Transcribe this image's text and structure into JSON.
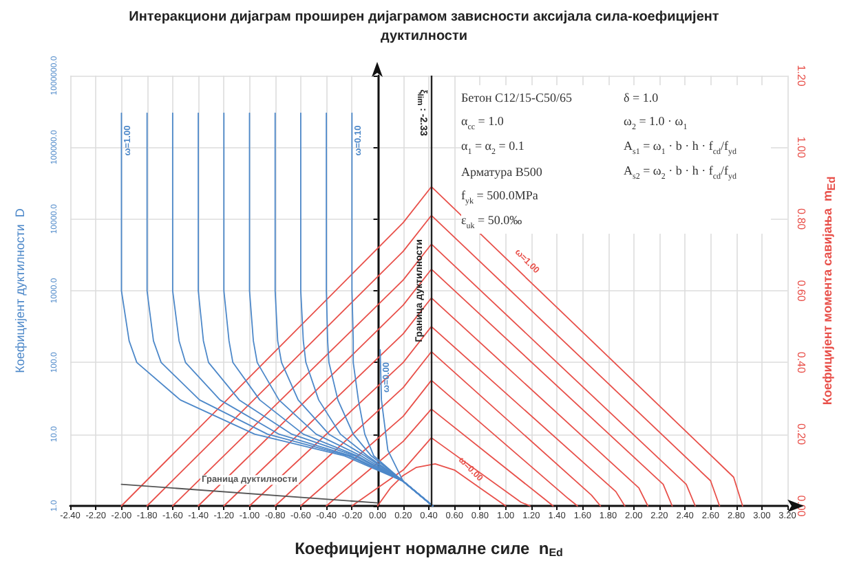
{
  "chart_data": {
    "type": "line",
    "title": "Интеракциони дијаграм проширен дијаграмом зависности аксијала сила-коефицијент дуктилности",
    "xlabel": "Коефицијент нормалне силе  n$_{Ed}$",
    "ylabel": "Коефицијент дуктилности  D",
    "y2label": "Коефицијент момента савијања  m$_{Ed}$",
    "xlim": [
      -2.4,
      3.2
    ],
    "xticks": [
      {
        "value": -2.4,
        "label": "-2.40"
      },
      {
        "value": -2.2,
        "label": "-2.20"
      },
      {
        "value": -2.0,
        "label": "-2.00"
      },
      {
        "value": -1.8,
        "label": "-1.80"
      },
      {
        "value": -1.6,
        "label": "-1.60"
      },
      {
        "value": -1.4,
        "label": "-1.40"
      },
      {
        "value": -1.2,
        "label": "-1.20"
      },
      {
        "value": -1.0,
        "label": "-1.00"
      },
      {
        "value": -0.8,
        "label": "-0.80"
      },
      {
        "value": -0.6,
        "label": "-0.60"
      },
      {
        "value": -0.4,
        "label": "-0.40"
      },
      {
        "value": -0.2,
        "label": "-0.20"
      },
      {
        "value": 0,
        "label": "0.00"
      },
      {
        "value": 0.2,
        "label": "0.20"
      },
      {
        "value": 0.4,
        "label": "0.40"
      },
      {
        "value": 0.6,
        "label": "0.60"
      },
      {
        "value": 0.8,
        "label": "0.80"
      },
      {
        "value": 1.0,
        "label": "1.00"
      },
      {
        "value": 1.2,
        "label": "1.20"
      },
      {
        "value": 1.4,
        "label": "1.40"
      },
      {
        "value": 1.6,
        "label": "1.60"
      },
      {
        "value": 1.8,
        "label": "1.80"
      },
      {
        "value": 2.0,
        "label": "2.00"
      },
      {
        "value": 2.2,
        "label": "2.20"
      },
      {
        "value": 2.4,
        "label": "2.40"
      },
      {
        "value": 2.6,
        "label": "2.60"
      },
      {
        "value": 2.8,
        "label": "2.80"
      },
      {
        "value": 3.0,
        "label": "3.00"
      },
      {
        "value": 3.2,
        "label": "3.20"
      }
    ],
    "ylim": [
      1,
      1000000
    ],
    "yticks": [
      {
        "value": 1,
        "label": "1.0"
      },
      {
        "value": 10,
        "label": "10.0"
      },
      {
        "value": 100,
        "label": "100.0"
      },
      {
        "value": 1000,
        "label": "1000.0"
      },
      {
        "value": 10000,
        "label": "10000.0"
      },
      {
        "value": 100000,
        "label": "100000.0"
      },
      {
        "value": 1000000,
        "label": "1000000.0"
      }
    ],
    "y2lim": [
      0,
      1.2
    ],
    "y2ticks": [
      {
        "value": 0,
        "label": "0.00"
      },
      {
        "value": 0.2,
        "label": "0.20"
      },
      {
        "value": 0.4,
        "label": "0.40"
      },
      {
        "value": 0.6,
        "label": "0.60"
      },
      {
        "value": 0.8,
        "label": "0.80"
      },
      {
        "value": 1.0,
        "label": "1.00"
      },
      {
        "value": 1.2,
        "label": "1.20"
      }
    ],
    "log": "y",
    "grid": true,
    "legend": false,
    "series": [
      {
        "name": "ω=0.00",
        "axis": "y2",
        "color": "#e8504a",
        "x": [
          0,
          0.1,
          0.2,
          0.3,
          0.45,
          0.6,
          0.8,
          1.0
        ],
        "values": [
          0,
          0.05,
          0.085,
          0.107,
          0.117,
          0.1,
          0.05,
          0
        ]
      },
      {
        "axis": "y2",
        "color": "#e8504a",
        "x": [
          -0.2,
          0.2,
          0.42,
          1.12,
          1.19
        ],
        "values": [
          0,
          0.1,
          0.19,
          0.01,
          0
        ]
      },
      {
        "axis": "y2",
        "color": "#e8504a",
        "x": [
          -0.4,
          0.2,
          0.42,
          1.3,
          1.37
        ],
        "values": [
          0,
          0.18,
          0.27,
          0.02,
          0
        ]
      },
      {
        "axis": "y2",
        "color": "#e8504a",
        "x": [
          -0.6,
          0.2,
          0.42,
          1.49,
          1.56
        ],
        "values": [
          0,
          0.25,
          0.35,
          0.02,
          0
        ]
      },
      {
        "axis": "y2",
        "color": "#e8504a",
        "x": [
          -0.8,
          0.2,
          0.42,
          1.67,
          1.74
        ],
        "values": [
          0,
          0.33,
          0.43,
          0.03,
          0
        ]
      },
      {
        "axis": "y2",
        "color": "#e8504a",
        "x": [
          -1.0,
          0.2,
          0.42,
          1.86,
          1.93
        ],
        "values": [
          0,
          0.4,
          0.5,
          0.04,
          0
        ]
      },
      {
        "axis": "y2",
        "color": "#e8504a",
        "x": [
          -1.2,
          0.2,
          0.42,
          2.04,
          2.11
        ],
        "values": [
          0,
          0.48,
          0.58,
          0.05,
          0
        ]
      },
      {
        "axis": "y2",
        "color": "#e8504a",
        "x": [
          -1.4,
          0.2,
          0.42,
          2.23,
          2.3
        ],
        "values": [
          0,
          0.56,
          0.66,
          0.06,
          0
        ]
      },
      {
        "axis": "y2",
        "color": "#e8504a",
        "x": [
          -1.6,
          0.2,
          0.42,
          2.41,
          2.48
        ],
        "values": [
          0,
          0.63,
          0.73,
          0.06,
          0
        ]
      },
      {
        "axis": "y2",
        "color": "#e8504a",
        "x": [
          -1.8,
          0.2,
          0.42,
          2.6,
          2.67
        ],
        "values": [
          0,
          0.71,
          0.81,
          0.07,
          0
        ]
      },
      {
        "name": "ω=1.00",
        "axis": "y2",
        "color": "#e8504a",
        "x": [
          -2.0,
          0.2,
          0.42,
          2.78,
          2.85
        ],
        "values": [
          0,
          0.79,
          0.89,
          0.08,
          0
        ]
      },
      {
        "name": "ω=0.00",
        "axis": "y",
        "color": "#4d88c9",
        "x": [
          0.02,
          0.03,
          0.08,
          0.2,
          0.43
        ],
        "values": [
          150,
          30,
          6,
          2.2,
          1
        ]
      },
      {
        "name": "ω=0.10",
        "axis": "y",
        "color": "#4d88c9",
        "x": [
          -0.2,
          -0.2,
          -0.19,
          -0.19,
          -0.15,
          -0.1,
          -0.03,
          0.2,
          0.43
        ],
        "values": [
          300000,
          1000,
          200,
          100,
          30,
          10,
          5,
          2.2,
          1
        ]
      },
      {
        "axis": "y",
        "color": "#4d88c9",
        "x": [
          -0.4,
          -0.4,
          -0.39,
          -0.38,
          -0.31,
          -0.19,
          -0.05,
          0.2,
          0.43
        ],
        "values": [
          300000,
          1000,
          200,
          100,
          30,
          10,
          5,
          2.2,
          1
        ]
      },
      {
        "axis": "y",
        "color": "#4d88c9",
        "x": [
          -0.6,
          -0.6,
          -0.58,
          -0.56,
          -0.46,
          -0.29,
          -0.08,
          0.2,
          0.43
        ],
        "values": [
          300000,
          1000,
          200,
          100,
          30,
          10,
          5,
          2.2,
          1
        ]
      },
      {
        "axis": "y",
        "color": "#4d88c9",
        "x": [
          -0.8,
          -0.8,
          -0.78,
          -0.75,
          -0.62,
          -0.38,
          -0.1,
          0.2,
          0.43
        ],
        "values": [
          300000,
          1000,
          200,
          100,
          30,
          10,
          5,
          2.2,
          1
        ]
      },
      {
        "axis": "y",
        "color": "#4d88c9",
        "x": [
          -1.0,
          -1.0,
          -0.97,
          -0.94,
          -0.77,
          -0.48,
          -0.13,
          0.2,
          0.43
        ],
        "values": [
          300000,
          1000,
          200,
          100,
          30,
          10,
          5,
          2.2,
          1
        ]
      },
      {
        "axis": "y",
        "color": "#4d88c9",
        "x": [
          -1.2,
          -1.2,
          -1.16,
          -1.13,
          -0.92,
          -0.58,
          -0.16,
          0.2,
          0.43
        ],
        "values": [
          300000,
          1000,
          200,
          100,
          30,
          10,
          5,
          2.2,
          1
        ]
      },
      {
        "axis": "y",
        "color": "#4d88c9",
        "x": [
          -1.4,
          -1.4,
          -1.36,
          -1.32,
          -1.08,
          -0.67,
          -0.18,
          0.2,
          0.43
        ],
        "values": [
          300000,
          1000,
          200,
          100,
          30,
          10,
          5,
          2.2,
          1
        ]
      },
      {
        "axis": "y",
        "color": "#4d88c9",
        "x": [
          -1.6,
          -1.6,
          -1.55,
          -1.5,
          -1.23,
          -0.77,
          -0.21,
          0.2,
          0.43
        ],
        "values": [
          300000,
          1000,
          200,
          100,
          30,
          10,
          5,
          2.2,
          1
        ]
      },
      {
        "axis": "y",
        "color": "#4d88c9",
        "x": [
          -1.8,
          -1.8,
          -1.75,
          -1.69,
          -1.39,
          -0.86,
          -0.23,
          0.2,
          0.43
        ],
        "values": [
          300000,
          1000,
          200,
          100,
          30,
          10,
          5,
          2.2,
          1
        ]
      },
      {
        "name": "ω=1.00",
        "axis": "y",
        "color": "#4d88c9",
        "x": [
          -2.0,
          -2.0,
          -1.94,
          -1.88,
          -1.54,
          -0.96,
          -0.26,
          0.2,
          0.43
        ],
        "values": [
          300000,
          1000,
          200,
          100,
          30,
          10,
          5,
          2.2,
          1
        ]
      },
      {
        "name": "Граница дуктилности",
        "axis": "y",
        "color": "#555555",
        "x": [
          -2.0,
          0.0
        ],
        "values": [
          2.0,
          1.1
        ]
      }
    ],
    "ref_lines": [
      {
        "axis": "x",
        "value": 0.42,
        "label": "Граница дуктилности",
        "color": "#222222"
      }
    ],
    "annotations": [
      "Бетон C12/15-C50/65",
      "α$_{cc}$ = 1.0",
      "α$_{1}$ = α$_{2}$ = 0.1",
      "Арматура  B500",
      "f$_{yk}$ = 500.0MPa",
      "ε$_{uk}$ = 50.0‰",
      "δ = 1.0",
      "ω$_{2}$ = 1.0 · ω$_{1}$",
      "A$_{s1}$ = ω$_{1}$ · b · h · f$_{cd}$/f$_{yd}$",
      "A$_{s2}$ = ω$_{2}$ · b · h · f$_{cd}$/f$_{yd}$",
      {
        "text": "ξ$_{lim}$ : -2.33",
        "x": 0.42,
        "y": 300000
      }
    ]
  }
}
